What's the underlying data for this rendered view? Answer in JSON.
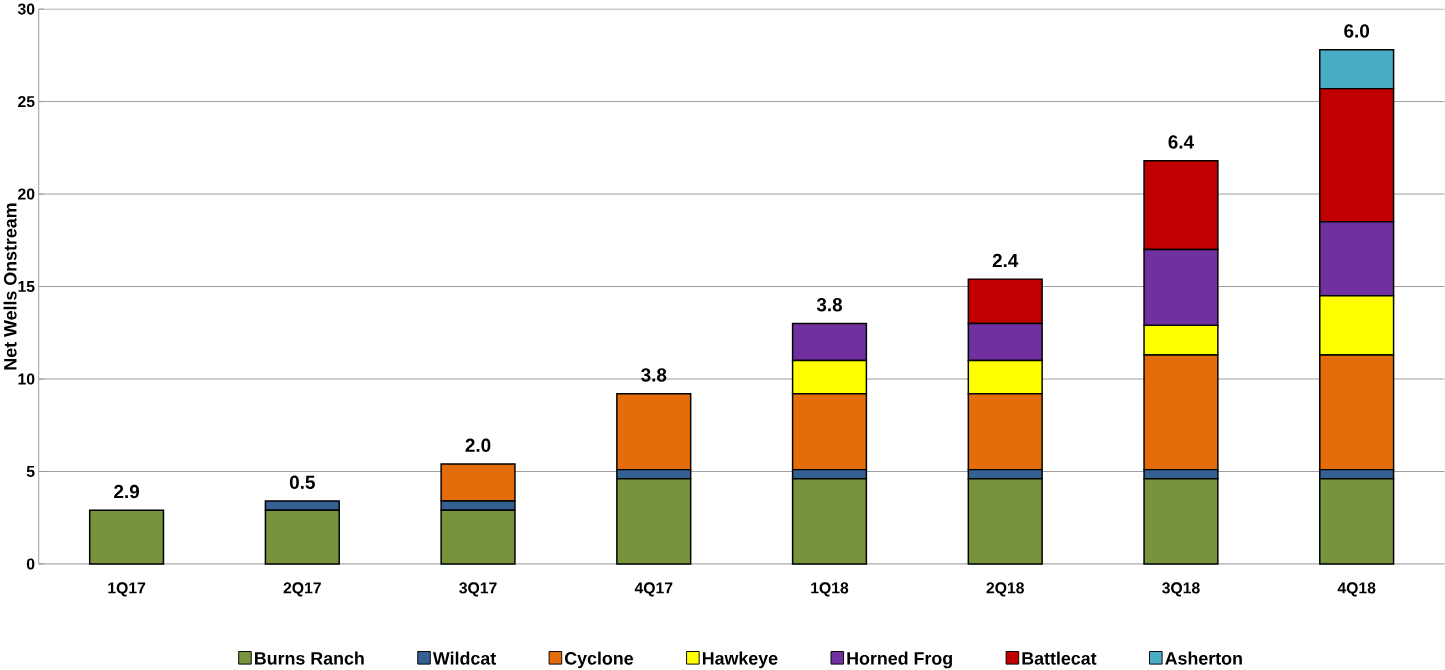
{
  "chart_data": {
    "type": "bar",
    "stacked": true,
    "ylabel": "Net Wells Onstream",
    "categories": [
      "1Q17",
      "2Q17",
      "3Q17",
      "4Q17",
      "1Q18",
      "2Q18",
      "3Q18",
      "4Q18"
    ],
    "series": [
      {
        "name": "Burns Ranch",
        "color": "#77933c",
        "values": [
          2.9,
          2.9,
          2.9,
          4.6,
          4.6,
          4.6,
          4.6,
          4.6
        ]
      },
      {
        "name": "Wildcat",
        "color": "#366092",
        "values": [
          null,
          0.5,
          0.5,
          0.5,
          0.5,
          0.5,
          0.5,
          0.5
        ]
      },
      {
        "name": "Cyclone",
        "color": "#e46c0a",
        "values": [
          null,
          null,
          2.0,
          4.1,
          4.1,
          4.1,
          6.2,
          6.2
        ]
      },
      {
        "name": "Hawkeye",
        "color": "#ffff00",
        "values": [
          null,
          null,
          null,
          null,
          1.8,
          1.8,
          1.6,
          3.2
        ]
      },
      {
        "name": "Horned Frog",
        "color": "#7030a0",
        "values": [
          null,
          null,
          null,
          null,
          2.0,
          2.0,
          4.1,
          4.0
        ]
      },
      {
        "name": "Battlecat",
        "color": "#c00000",
        "values": [
          null,
          null,
          null,
          null,
          null,
          2.4,
          4.8,
          7.2
        ]
      },
      {
        "name": "Asherton",
        "color": "#4bacc6",
        "values": [
          null,
          null,
          null,
          null,
          null,
          null,
          null,
          2.1
        ]
      }
    ],
    "annotations": [
      {
        "text": "2.9",
        "x": "1Q17",
        "y": 2.9
      },
      {
        "text": "0.5",
        "x": "2Q17",
        "y": 3.4
      },
      {
        "text": "2.0",
        "x": "3Q17",
        "y": 5.4
      },
      {
        "text": "3.8",
        "x": "4Q17",
        "y": 9.2
      },
      {
        "text": "3.8",
        "x": "1Q18",
        "y": 13.0
      },
      {
        "text": "2.4",
        "x": "2Q18",
        "y": 15.4
      },
      {
        "text": "6.4",
        "x": "3Q18",
        "y": 21.8
      },
      {
        "text": "6.0",
        "x": "4Q18",
        "y": 27.8
      }
    ],
    "ylim": [
      0,
      30
    ],
    "yticks": [
      0,
      5,
      10,
      15,
      20,
      25,
      30
    ],
    "grid": "y",
    "legend": "bottom"
  }
}
